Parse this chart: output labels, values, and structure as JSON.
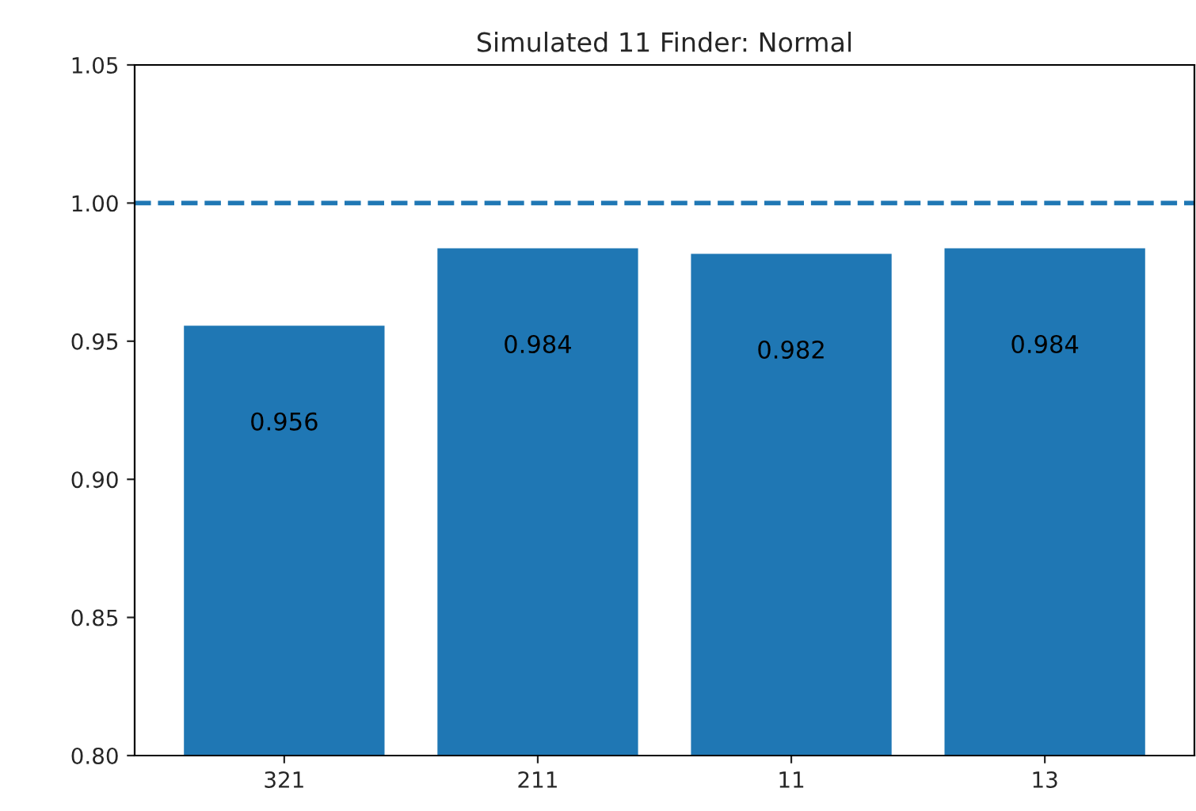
{
  "chart_data": {
    "type": "bar",
    "title": "Simulated 11 Finder: Normal",
    "categories": [
      "321",
      "211",
      "11",
      "13"
    ],
    "values": [
      0.956,
      0.984,
      0.982,
      0.984
    ],
    "color": "#1f77b4",
    "ylim": [
      0.8,
      1.05
    ],
    "yticks": [
      {
        "value": 0.8,
        "label": "0.80"
      },
      {
        "value": 0.85,
        "label": "0.85"
      },
      {
        "value": 0.9,
        "label": "0.90"
      },
      {
        "value": 0.95,
        "label": "0.95"
      },
      {
        "value": 1.0,
        "label": "1.00"
      },
      {
        "value": 1.05,
        "label": "1.05"
      }
    ],
    "data_labels": true,
    "ref_lines": [
      {
        "axis": "y",
        "value": 1.0,
        "color": "#1f77b4",
        "line_style": "dashed"
      }
    ],
    "grid": false,
    "legend": false
  }
}
